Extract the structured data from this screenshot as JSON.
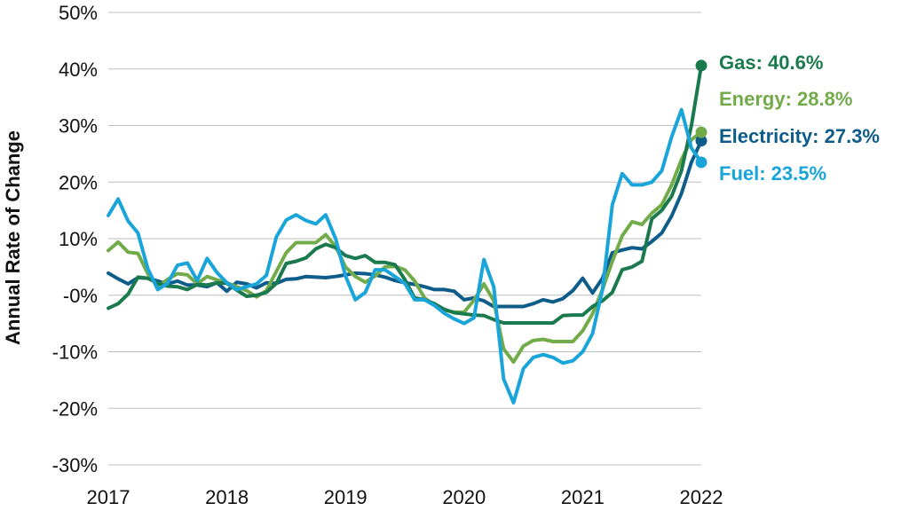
{
  "chart_data": {
    "type": "line",
    "title": "",
    "xlabel": "",
    "ylabel": "Annual Rate of Change",
    "ylim": [
      -30,
      50
    ],
    "yticks": [
      50,
      40,
      30,
      20,
      10,
      0,
      -10,
      -20,
      -30
    ],
    "ytick_labels": [
      "50%",
      "40%",
      "30%",
      "20%",
      "10%",
      "-0%",
      "-10%",
      "-20%",
      "-30%"
    ],
    "xlim": [
      2017,
      2022
    ],
    "xticks": [
      2017,
      2018,
      2019,
      2020,
      2021,
      2022
    ],
    "xtick_labels": [
      "2017",
      "2018",
      "2019",
      "2020",
      "2021",
      "2022"
    ],
    "grid": "horizontal",
    "legend": "end-of-line labels",
    "x_step_years": 0.0833,
    "series": [
      {
        "name": "Electricity",
        "color": "#0E5C8A",
        "end_label": "Electricity: 27.3%",
        "end_value": 27.3,
        "values": [
          3.9,
          2.9,
          2.0,
          3.1,
          3.0,
          2.5,
          2.0,
          2.5,
          1.8,
          1.8,
          1.5,
          2.2,
          0.7,
          2.3,
          2.0,
          1.3,
          2.2,
          2.1,
          2.8,
          2.9,
          3.3,
          3.2,
          3.1,
          3.3,
          3.6,
          3.9,
          3.8,
          3.6,
          3.2,
          2.6,
          2.2,
          1.9,
          1.5,
          1.0,
          1.0,
          0.7,
          -0.8,
          -0.5,
          -1.0,
          -2.0,
          -2.0,
          -2.0,
          -2.0,
          -1.5,
          -0.8,
          -1.2,
          -0.6,
          0.8,
          3.0,
          0.4,
          3.0,
          7.5,
          8.0,
          8.4,
          8.2,
          9.5,
          11.0,
          14.0,
          18.0,
          23.5,
          27.3
        ]
      },
      {
        "name": "Energy",
        "color": "#72AB4A",
        "end_label": "Energy: 28.8%",
        "end_value": 28.8,
        "values": [
          7.9,
          9.4,
          7.6,
          7.4,
          3.8,
          1.5,
          2.8,
          3.8,
          3.6,
          2.0,
          3.3,
          2.7,
          2.2,
          1.5,
          0.8,
          -0.3,
          0.8,
          4.2,
          7.5,
          9.3,
          9.3,
          9.3,
          10.7,
          8.6,
          5.0,
          3.3,
          2.3,
          3.4,
          5.0,
          5.1,
          4.5,
          2.5,
          -0.5,
          -1.8,
          -2.6,
          -3.0,
          -3.0,
          -0.9,
          2.0,
          -1.0,
          -9.5,
          -11.8,
          -9.0,
          -8.0,
          -7.8,
          -8.2,
          -8.2,
          -8.2,
          -6.3,
          -3.3,
          1.0,
          6.0,
          10.5,
          13.0,
          12.5,
          14.5,
          16.0,
          19.5,
          24.0,
          27.5,
          28.8
        ]
      },
      {
        "name": "Gas",
        "color": "#1A7A4E",
        "end_label": "Gas: 40.6%",
        "end_value": 40.6,
        "values": [
          -2.3,
          -1.5,
          0.2,
          3.2,
          3.0,
          2.1,
          1.6,
          1.5,
          1.0,
          1.9,
          1.8,
          2.2,
          2.1,
          0.9,
          -0.2,
          0.0,
          0.5,
          2.1,
          5.6,
          6.0,
          6.6,
          8.2,
          9.0,
          8.4,
          7.0,
          6.5,
          7.0,
          5.8,
          5.8,
          5.4,
          2.8,
          -0.5,
          -0.8,
          -1.5,
          -2.5,
          -3.1,
          -3.3,
          -3.5,
          -3.6,
          -4.3,
          -4.9,
          -4.9,
          -4.9,
          -4.9,
          -4.9,
          -4.9,
          -3.6,
          -3.5,
          -3.5,
          -2.0,
          -1.0,
          0.5,
          4.5,
          5.0,
          6.0,
          13.5,
          15.0,
          17.5,
          22.0,
          30.0,
          40.6
        ]
      },
      {
        "name": "Fuel",
        "color": "#1AA5DA",
        "end_label": "Fuel: 23.5%",
        "end_value": 23.5,
        "values": [
          14.1,
          17.0,
          13.1,
          11.0,
          4.7,
          1.0,
          2.1,
          5.3,
          5.7,
          2.6,
          6.5,
          4.0,
          2.2,
          1.0,
          1.5,
          2.0,
          3.5,
          10.3,
          13.3,
          14.2,
          13.2,
          12.6,
          14.2,
          10.0,
          3.4,
          -0.8,
          0.5,
          4.5,
          4.5,
          3.3,
          2.1,
          -0.8,
          -0.8,
          -1.8,
          -3.2,
          -4.2,
          -5.0,
          -4.0,
          6.3,
          1.5,
          -14.8,
          -19.0,
          -13.0,
          -11.0,
          -10.5,
          -11.0,
          -12.0,
          -11.6,
          -10.0,
          -6.8,
          1.0,
          16.0,
          21.5,
          19.5,
          19.5,
          20.0,
          22.0,
          28.0,
          32.8,
          26.0,
          23.5
        ]
      }
    ]
  }
}
